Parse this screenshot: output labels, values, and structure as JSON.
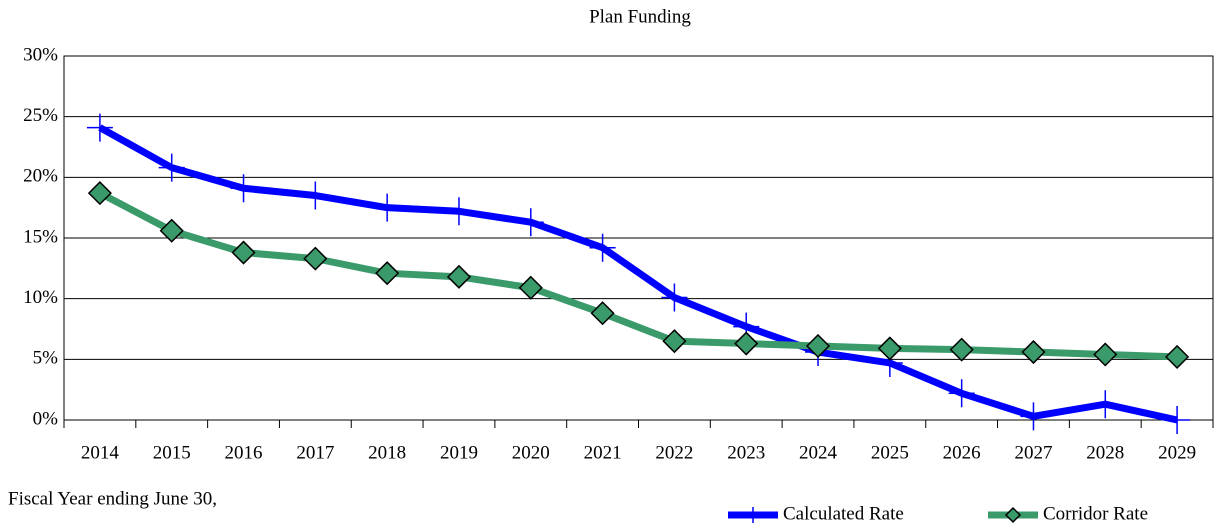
{
  "chart_data": {
    "type": "line",
    "title": "Plan Funding",
    "x_label": "Fiscal Year ending June 30,",
    "categories": [
      "2014",
      "2015",
      "2016",
      "2017",
      "2018",
      "2019",
      "2020",
      "2021",
      "2022",
      "2023",
      "2024",
      "2025",
      "2026",
      "2027",
      "2028",
      "2029"
    ],
    "series": [
      {
        "name": "Calculated Rate",
        "color": "#0000ff",
        "marker": "plus",
        "values": [
          24.1,
          20.8,
          19.1,
          18.5,
          17.5,
          17.2,
          16.3,
          14.2,
          10.1,
          7.7,
          5.6,
          4.7,
          2.2,
          0.3,
          1.3,
          0
        ]
      },
      {
        "name": "Corridor Rate",
        "color": "#3a9a6a",
        "marker": "diamond",
        "values": [
          18.7,
          15.6,
          13.8,
          13.3,
          12.1,
          11.8,
          10.9,
          8.8,
          6.5,
          6.3,
          6.1,
          5.9,
          5.8,
          5.6,
          5.4,
          5.2
        ]
      }
    ],
    "ylim": [
      0,
      30
    ],
    "yticks": [
      {
        "value": 0,
        "label": "0%"
      },
      {
        "value": 5,
        "label": "5%"
      },
      {
        "value": 10,
        "label": "10%"
      },
      {
        "value": 15,
        "label": "15%"
      },
      {
        "value": 20,
        "label": "20%"
      },
      {
        "value": 25,
        "label": "25%"
      },
      {
        "value": 30,
        "label": "30%"
      }
    ],
    "grid": true,
    "legend": "bottom-right"
  }
}
